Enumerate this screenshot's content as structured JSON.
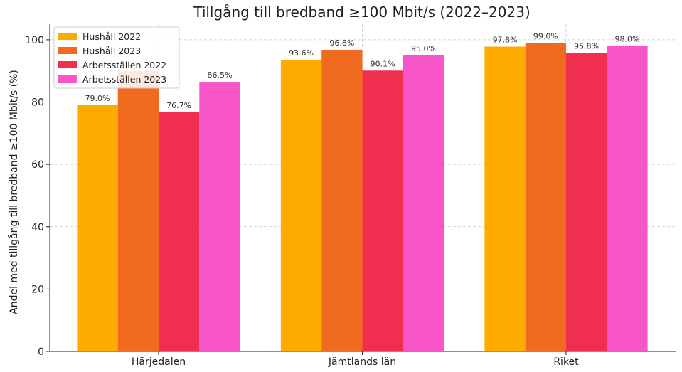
{
  "chart_data": {
    "type": "bar",
    "title": "Tillgång till bredband ≥100 Mbit/s (2022–2023)",
    "xlabel": "",
    "ylabel": "Andel med tillgång till bredband ≥100 Mbit/s (%)",
    "ylim": [
      0,
      105
    ],
    "yticks": [
      0,
      20,
      40,
      60,
      80,
      100
    ],
    "grid": true,
    "legend_position": "top-left",
    "categories": [
      "Härjedalen",
      "Jämtlands län",
      "Riket"
    ],
    "series": [
      {
        "name": "Hushåll 2022",
        "color": "#FFAA00",
        "values": [
          79.0,
          93.6,
          97.8
        ],
        "labels": [
          "79.0%",
          "93.6%",
          "97.8%"
        ]
      },
      {
        "name": "Hushåll 2023",
        "color": "#F06A20",
        "values": [
          89.9,
          96.8,
          99.0
        ],
        "labels": [
          "",
          "96.8%",
          "99.0%"
        ]
      },
      {
        "name": "Arbetsställen 2022",
        "color": "#F02E50",
        "values": [
          76.7,
          90.1,
          95.8
        ],
        "labels": [
          "76.7%",
          "90.1%",
          "95.8%"
        ]
      },
      {
        "name": "Arbetsställen 2023",
        "color": "#F855C8",
        "values": [
          86.5,
          95.0,
          98.0
        ],
        "labels": [
          "86.5%",
          "95.0%",
          "98.0%"
        ]
      }
    ]
  }
}
